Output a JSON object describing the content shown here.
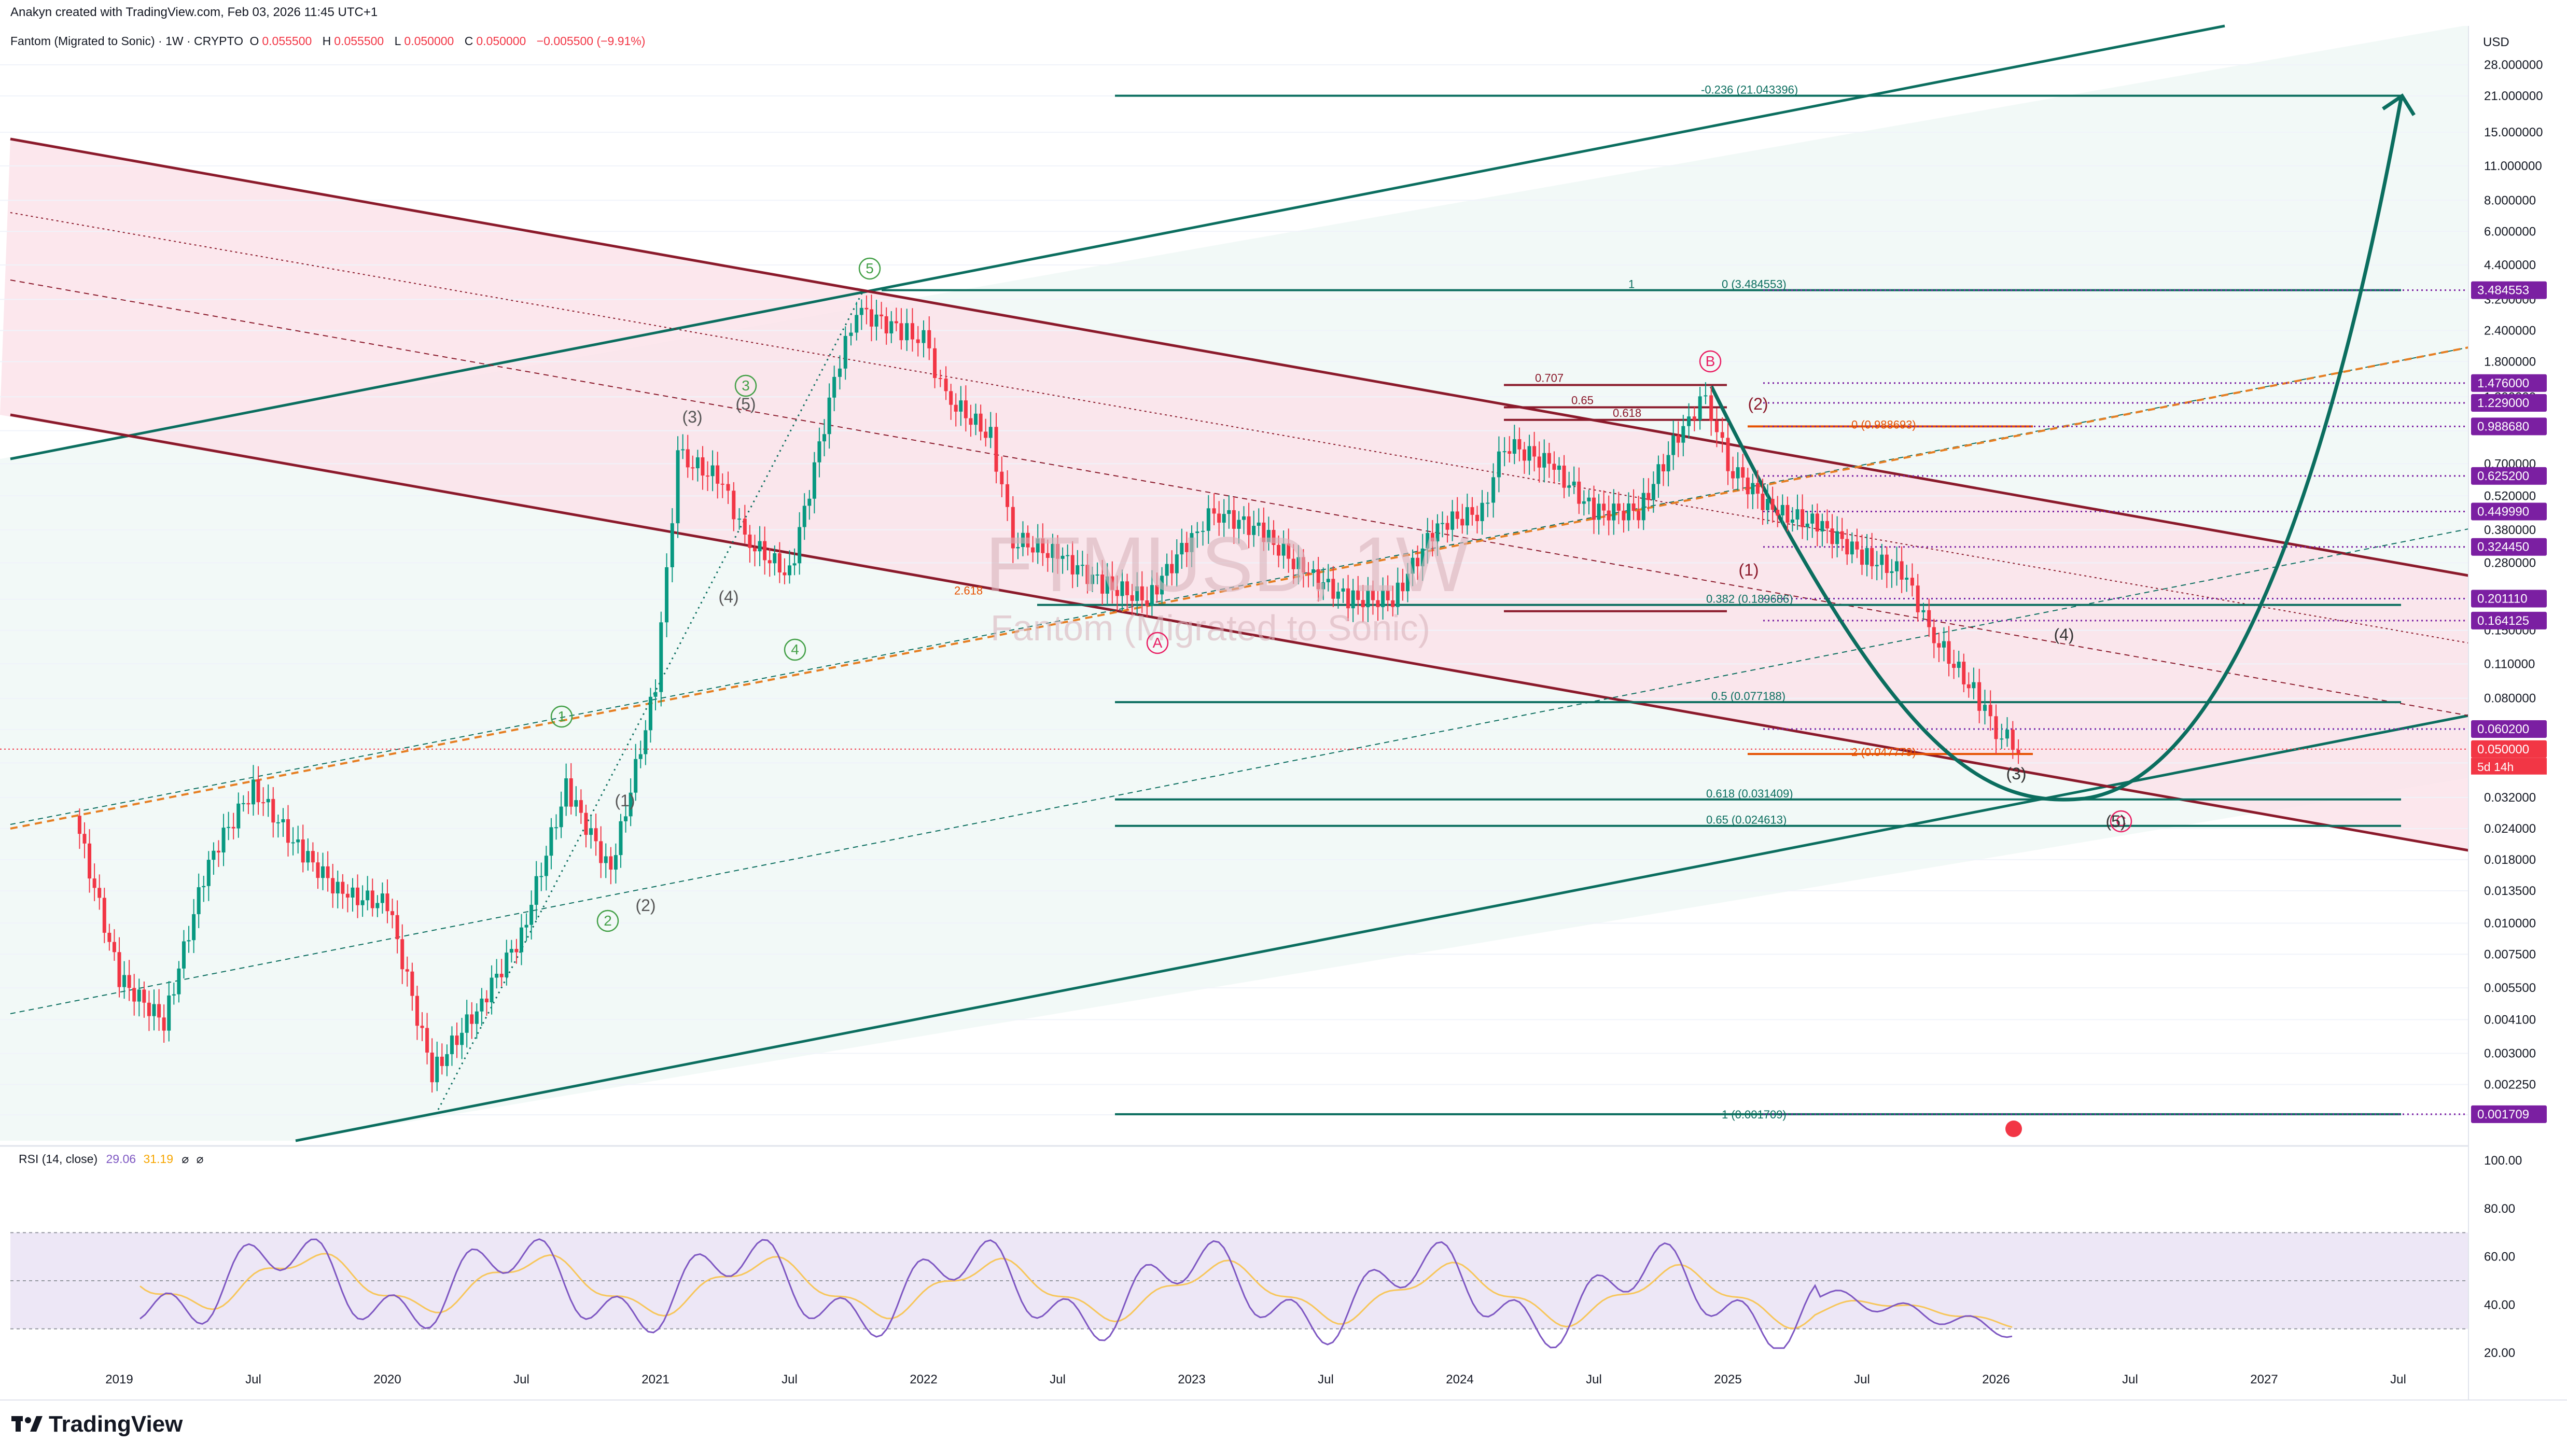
{
  "header": {
    "credit": "Anakyn created with TradingView.com, Feb 03, 2026 11:45 UTC+1",
    "symbol": "Fantom (Migrated to Sonic) · 1W · CRYPTO",
    "open_label": "O",
    "open": "0.055500",
    "high_label": "H",
    "high": "0.055500",
    "low_label": "L",
    "low": "0.050000",
    "close_label": "C",
    "close": "0.050000",
    "change": "−0.005500 (−9.91%)"
  },
  "watermark": {
    "ticker": "FTMUSD, 1W",
    "name": "Fantom (Migrated to Sonic)"
  },
  "price_axis": {
    "currency": "USD",
    "ticks": [
      "28.000000",
      "21.000000",
      "15.000000",
      "11.000000",
      "8.000000",
      "6.000000",
      "4.400000",
      "3.200000",
      "2.400000",
      "1.800000",
      "1.300000",
      "0.950000",
      "0.700000",
      "0.520000",
      "0.380000",
      "0.280000",
      "0.200000",
      "0.150000",
      "0.110000",
      "0.080000",
      "0.060000",
      "0.044000",
      "0.032000",
      "0.024000",
      "0.018000",
      "0.013500",
      "0.010000",
      "0.007500",
      "0.005500",
      "0.004100",
      "0.003000",
      "0.002250",
      "0.001700"
    ],
    "badges": [
      {
        "value": "3.484553",
        "color": "#7b1fa2"
      },
      {
        "value": "1.476000",
        "color": "#7b1fa2"
      },
      {
        "value": "1.229000",
        "color": "#7b1fa2"
      },
      {
        "value": "0.988680",
        "color": "#7b1fa2"
      },
      {
        "value": "0.625200",
        "color": "#7b1fa2"
      },
      {
        "value": "0.449990",
        "color": "#7b1fa2"
      },
      {
        "value": "0.324450",
        "color": "#7b1fa2"
      },
      {
        "value": "0.201110",
        "color": "#7b1fa2"
      },
      {
        "value": "0.164125",
        "color": "#7b1fa2"
      },
      {
        "value": "0.060200",
        "color": "#7b1fa2"
      },
      {
        "value": "0.050000",
        "color": "#f23645"
      },
      {
        "value": "0.001709",
        "color": "#7b1fa2"
      }
    ],
    "countdown": "5d 14h"
  },
  "time_axis": {
    "labels": [
      "2019",
      "Jul",
      "2020",
      "Jul",
      "2021",
      "Jul",
      "2022",
      "Jul",
      "2023",
      "Jul",
      "2024",
      "Jul",
      "2025",
      "Jul",
      "2026",
      "Jul",
      "2027",
      "Jul"
    ]
  },
  "rsi": {
    "label": "RSI (14, close)",
    "value": "29.06",
    "ma_value": "31.19",
    "ticks": [
      "100.00",
      "80.00",
      "60.00",
      "40.00",
      "20.00"
    ]
  },
  "fib_labels": {
    "ext_top": "-0.236 (21.043396)",
    "fib_one": "1",
    "fib_zero": "0 (3.484553)",
    "fib_0382": "0.382 (0.189686)",
    "fib_05": "0.5 (0.077188)",
    "fib_0618": "0.618 (0.031409)",
    "fib_065": "0.65 (0.024613)",
    "fib_bottom": "1 (0.001709)",
    "fib_2a": "2 (0.047779)",
    "fib_2b": "0 (0.988693)",
    "fib_0707": "0.707",
    "fib_065b": "0.65",
    "fib_0618b": "0.618",
    "fib_2c": "2.618"
  },
  "waves": {
    "w1": "1",
    "w2": "2",
    "w3": "3",
    "w4": "4",
    "w5": "5",
    "p1": "(1)",
    "p2": "(2)",
    "p3": "(3)",
    "p4": "(4)",
    "p5": "(5)",
    "A": "A",
    "B": "B",
    "C": "C"
  },
  "colors": {
    "up": "#089981",
    "down": "#f23645",
    "channel_green": "#0b6e5f",
    "channel_red": "#8b1a2b",
    "fib_purple": "#7b1fa2",
    "rsi_line": "#7e57c2",
    "rsi_ma": "#f7c65b",
    "rsi_band": "#ede7f6"
  },
  "brand": "TradingView",
  "chart_data": {
    "type": "candlestick",
    "title": "Fantom (Migrated to Sonic) · 1W · CRYPTO",
    "ylabel": "USD",
    "y_scale": "log",
    "ylim": [
      0.0015,
      30
    ],
    "x_range": [
      "2018-10",
      "2027-09"
    ],
    "series": [
      {
        "name": "FTMUSD 1W (approx. weekly closes)",
        "x": [
          "2018-11",
          "2019-01",
          "2019-03",
          "2019-05",
          "2019-07",
          "2019-09",
          "2019-11",
          "2020-01",
          "2020-03",
          "2020-05",
          "2020-07",
          "2020-09",
          "2020-11",
          "2021-01",
          "2021-02",
          "2021-04",
          "2021-05",
          "2021-07",
          "2021-09",
          "2021-10",
          "2021-12",
          "2022-01",
          "2022-02",
          "2022-04",
          "2022-05",
          "2022-07",
          "2022-09",
          "2022-11",
          "2023-01",
          "2023-02",
          "2023-04",
          "2023-06",
          "2023-08",
          "2023-10",
          "2023-12",
          "2024-02",
          "2024-03",
          "2024-05",
          "2024-07",
          "2024-09",
          "2024-11",
          "2024-12",
          "2025-01",
          "2025-03",
          "2025-05",
          "2025-07",
          "2025-09",
          "2025-10",
          "2025-12",
          "2026-01",
          "2026-02"
        ],
        "values": [
          0.027,
          0.006,
          0.004,
          0.018,
          0.035,
          0.02,
          0.013,
          0.012,
          0.0025,
          0.0045,
          0.009,
          0.035,
          0.016,
          0.09,
          0.75,
          0.6,
          0.35,
          0.25,
          1.5,
          2.9,
          2.4,
          2.2,
          1.3,
          0.9,
          0.35,
          0.3,
          0.23,
          0.2,
          0.36,
          0.45,
          0.38,
          0.26,
          0.2,
          0.2,
          0.4,
          0.45,
          0.85,
          0.7,
          0.45,
          0.45,
          1.0,
          1.3,
          0.7,
          0.45,
          0.4,
          0.3,
          0.25,
          0.15,
          0.085,
          0.06,
          0.05
        ]
      }
    ],
    "annotations": [
      "-0.236 (21.043396)",
      "0 (3.484553)",
      "0.382 (0.189686)",
      "0.5 (0.077188)",
      "0.618 (0.031409)",
      "0.65 (0.024613)",
      "1 (0.001709)",
      "2 (0.047779)",
      "0 (0.988693)"
    ],
    "rsi": {
      "period": 14,
      "last": 29.06,
      "ma": 31.19,
      "ylim": [
        0,
        100
      ],
      "bands": [
        30,
        70
      ]
    }
  }
}
